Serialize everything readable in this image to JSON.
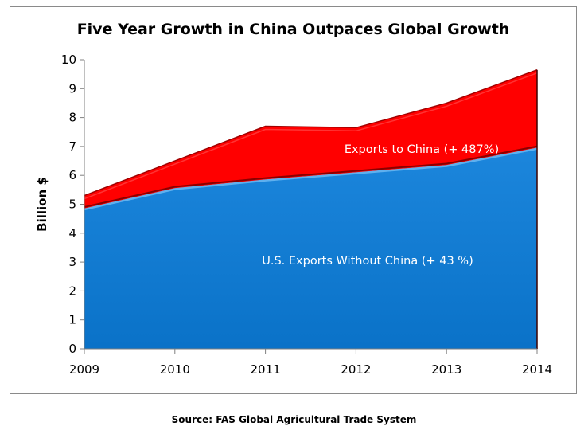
{
  "chart_data": {
    "type": "area",
    "stacked": true,
    "title": "Five Year Growth in China Outpaces Global Growth",
    "ylabel": "Billion $",
    "xlabel": "",
    "x": [
      "2009",
      "2010",
      "2011",
      "2012",
      "2013",
      "2014"
    ],
    "ylim": [
      0,
      10
    ],
    "yticks": [
      "0",
      "1",
      "2",
      "3",
      "4",
      "5",
      "6",
      "7",
      "8",
      "9",
      "10"
    ],
    "series": [
      {
        "name": "U.S. Exports Without China (+ 43 %)",
        "values": [
          4.85,
          5.55,
          5.85,
          6.1,
          6.35,
          6.95
        ],
        "color": "#0a72c8",
        "edge_color": "#5fb0ee"
      },
      {
        "name": "Exports to China (+ 487%)",
        "values": [
          0.45,
          0.95,
          1.85,
          1.55,
          2.15,
          2.7
        ],
        "color": "#ff0000",
        "edge_color": "#ff5555"
      }
    ],
    "grid": false,
    "legend": "none"
  },
  "source": "Source: FAS Global Agricultural Trade System"
}
